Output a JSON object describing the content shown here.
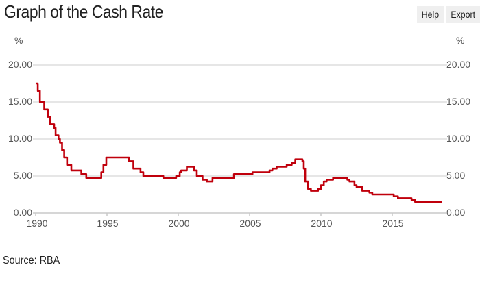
{
  "header": {
    "title": "Graph of the Cash Rate",
    "buttons": [
      {
        "label": "Help"
      },
      {
        "label": "Export"
      }
    ]
  },
  "footer": {
    "source": "Source: RBA"
  },
  "axes": {
    "left_unit": "%",
    "right_unit": "%",
    "y_ticks": [
      "20.00",
      "15.00",
      "10.00",
      "5.00",
      "0.00"
    ],
    "x_ticks": [
      "1990",
      "1995",
      "2000",
      "2005",
      "2010",
      "2015"
    ]
  },
  "colors": {
    "line": "#c0000c",
    "grid": "#dddddd",
    "axis": "#c8c8c8",
    "button_bg": "#efefef"
  },
  "chart_data": {
    "type": "line",
    "title": "Graph of the Cash Rate",
    "xlabel": "",
    "ylabel": "%",
    "ylim": [
      0,
      20
    ],
    "xlim": [
      1990,
      2018.5
    ],
    "grid": true,
    "legend": "none",
    "y_ticks": [
      0,
      5,
      10,
      15,
      20
    ],
    "x_ticks": [
      1990,
      1995,
      2000,
      2005,
      2010,
      2015
    ],
    "annotations": [
      "Source: RBA"
    ],
    "series": [
      {
        "name": "Cash Rate",
        "step": true,
        "x": [
          1990.0,
          1990.15,
          1990.3,
          1990.6,
          1990.85,
          1991.0,
          1991.3,
          1991.4,
          1991.6,
          1991.7,
          1991.85,
          1992.0,
          1992.2,
          1992.5,
          1993.2,
          1993.55,
          1994.6,
          1994.75,
          1994.95,
          1996.55,
          1996.85,
          1997.35,
          1997.55,
          1998.95,
          1999.85,
          2000.1,
          2000.2,
          2000.6,
          2001.1,
          2001.3,
          2001.7,
          2002.0,
          2002.4,
          2003.9,
          2005.2,
          2006.4,
          2006.6,
          2006.9,
          2007.6,
          2007.95,
          2008.2,
          2008.7,
          2008.8,
          2008.9,
          2009.1,
          2009.3,
          2009.8,
          2010.0,
          2010.2,
          2010.4,
          2010.85,
          2011.85,
          2012.0,
          2012.35,
          2012.5,
          2012.9,
          2013.4,
          2013.6,
          2015.1,
          2015.4,
          2016.35,
          2016.6,
          2018.5
        ],
        "values": [
          17.5,
          16.5,
          15.0,
          14.0,
          13.0,
          12.0,
          11.5,
          10.5,
          10.0,
          9.5,
          8.5,
          7.5,
          6.5,
          5.75,
          5.25,
          4.75,
          5.5,
          6.5,
          7.5,
          7.0,
          6.0,
          5.5,
          5.0,
          4.75,
          5.0,
          5.5,
          5.75,
          6.25,
          5.75,
          5.0,
          4.5,
          4.25,
          4.75,
          5.25,
          5.5,
          5.75,
          6.0,
          6.25,
          6.5,
          6.75,
          7.25,
          7.0,
          6.0,
          4.25,
          3.25,
          3.0,
          3.25,
          3.75,
          4.25,
          4.5,
          4.75,
          4.5,
          4.25,
          3.75,
          3.5,
          3.0,
          2.75,
          2.5,
          2.25,
          2.0,
          1.75,
          1.5,
          1.5
        ]
      }
    ]
  }
}
